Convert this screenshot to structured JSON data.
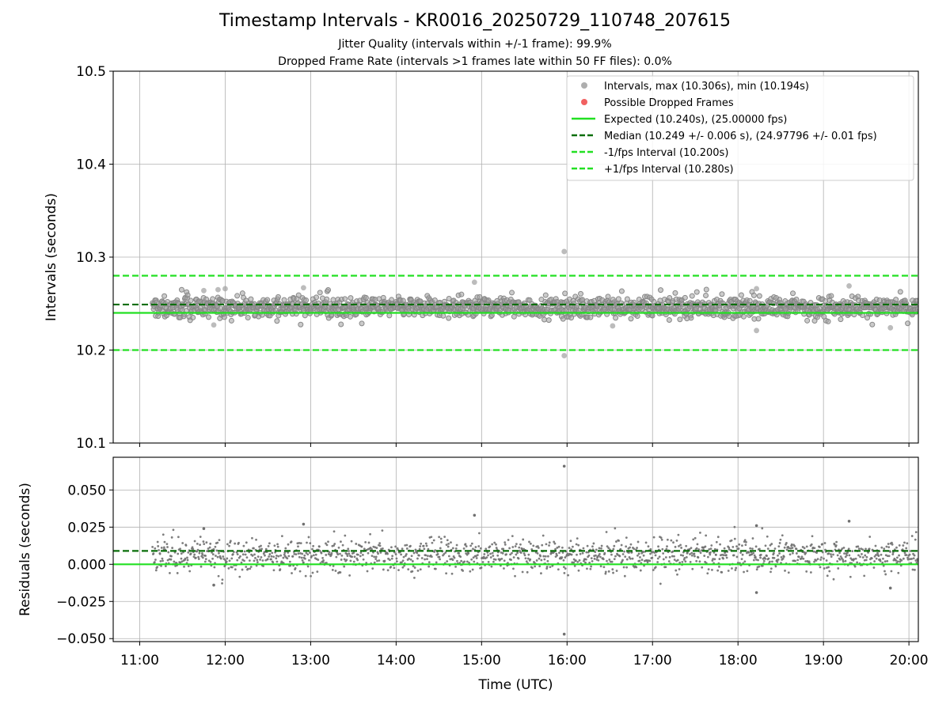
{
  "chart_data": [
    {
      "type": "scatter",
      "title": "Timestamp Intervals - KR0016_20250729_110748_207615",
      "subtitle_lines": [
        "Jitter Quality (intervals within +/-1 frame): 99.9%",
        "Dropped Frame Rate (intervals >1 frames late within 50 FF files): 0.0%"
      ],
      "ylabel": "Intervals (seconds)",
      "ylim": [
        10.1,
        10.5
      ],
      "y_ticks": [
        10.1,
        10.2,
        10.3,
        10.4,
        10.5
      ],
      "y_tick_labels": [
        "10.1",
        "10.2",
        "10.3",
        "10.4",
        "10.5"
      ],
      "x_range_hours": [
        10.69,
        20.11
      ],
      "x_span_hours": [
        11.15,
        20.11
      ],
      "grid": true,
      "legend_position": "top-right",
      "series": [
        {
          "name": "Intervals, max (10.306s), min (10.194s)",
          "kind": "scatter",
          "color": "#a0a0a0",
          "core_band": [
            10.234,
            10.258
          ],
          "outliers": [
            {
              "x": "11:45",
              "y": 10.264
            },
            {
              "x": "11:55",
              "y": 10.265
            },
            {
              "x": "12:00",
              "y": 10.266
            },
            {
              "x": "12:55",
              "y": 10.267
            },
            {
              "x": "14:55",
              "y": 10.273
            },
            {
              "x": "15:58",
              "y": 10.306
            },
            {
              "x": "15:58",
              "y": 10.194
            },
            {
              "x": "18:13",
              "y": 10.221
            },
            {
              "x": "18:13",
              "y": 10.266
            },
            {
              "x": "19:18",
              "y": 10.269
            },
            {
              "x": "19:47",
              "y": 10.224
            },
            {
              "x": "11:52",
              "y": 10.227
            },
            {
              "x": "16:32",
              "y": 10.226
            }
          ]
        },
        {
          "name": "Possible Dropped Frames",
          "kind": "scatter",
          "color": "#f05050",
          "points": []
        },
        {
          "name": "Expected (10.240s), (25.00000 fps)",
          "kind": "hline",
          "value": 10.24,
          "color": "#22e022",
          "style": "solid"
        },
        {
          "name": "Median (10.249 +/- 0.006 s), (24.97796 +/- 0.01 fps)",
          "kind": "hline",
          "value": 10.249,
          "color": "#0a6e0a",
          "style": "dashed"
        },
        {
          "name": "-1/fps Interval (10.200s)",
          "kind": "hline",
          "value": 10.2,
          "color": "#22e022",
          "style": "dashed"
        },
        {
          "name": "+1/fps Interval (10.280s)",
          "kind": "hline",
          "value": 10.28,
          "color": "#22e022",
          "style": "dashed"
        }
      ]
    },
    {
      "type": "scatter",
      "xlabel": "Time (UTC)",
      "ylabel": "Residuals (seconds)",
      "ylim": [
        -0.052,
        0.072
      ],
      "y_ticks": [
        -0.05,
        -0.025,
        0.0,
        0.025,
        0.05
      ],
      "y_tick_labels": [
        "−0.050",
        "−0.025",
        "0.000",
        "0.025",
        "0.050"
      ],
      "x_ticks": [
        "11:00",
        "12:00",
        "13:00",
        "14:00",
        "15:00",
        "16:00",
        "17:00",
        "18:00",
        "19:00",
        "20:00"
      ],
      "grid": true,
      "series": [
        {
          "kind": "scatter",
          "color": "#707070",
          "core_band": [
            -0.006,
            0.018
          ],
          "outliers": [
            {
              "x": "11:45",
              "y": 0.024
            },
            {
              "x": "12:55",
              "y": 0.027
            },
            {
              "x": "14:55",
              "y": 0.033
            },
            {
              "x": "15:58",
              "y": 0.066
            },
            {
              "x": "15:58",
              "y": -0.047
            },
            {
              "x": "18:13",
              "y": -0.019
            },
            {
              "x": "18:13",
              "y": 0.026
            },
            {
              "x": "19:18",
              "y": 0.029
            },
            {
              "x": "19:47",
              "y": -0.016
            },
            {
              "x": "11:52",
              "y": -0.014
            }
          ]
        },
        {
          "kind": "hline",
          "value": 0.0,
          "color": "#22e022",
          "style": "solid"
        },
        {
          "kind": "hline",
          "value": 0.009,
          "color": "#0a6e0a",
          "style": "dashed"
        }
      ]
    }
  ]
}
